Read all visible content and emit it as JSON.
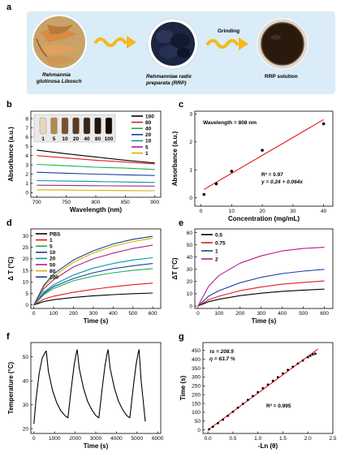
{
  "panel_a": {
    "letter": "a",
    "plant_label_lines": [
      "Rehmannia",
      "glutinosa Libosch"
    ],
    "rrp_label_lines": [
      "Rehmanniae radix",
      "preparata (RRP)"
    ],
    "grinding_label": "Grinding",
    "solution_label": "RRP solution",
    "colors": {
      "banner": "#d9ecf7",
      "arrow": "#f5b81c"
    }
  },
  "chart_data": [
    {
      "panel": "b",
      "type": "line",
      "xlabel": "Wavelength (nm)",
      "ylabel": "Absorbance (a.u.)",
      "xlim": [
        690,
        910
      ],
      "ylim": [
        -0.5,
        8.8
      ],
      "xticks": [
        700,
        750,
        800,
        850,
        900
      ],
      "yticks": [
        0,
        1,
        2,
        3,
        4,
        5,
        6,
        7,
        8
      ],
      "inset_labels": [
        "1",
        "5",
        "10",
        "20",
        "40",
        "80",
        "100"
      ],
      "series": [
        {
          "name": "100",
          "color": "#000000",
          "x": [
            700,
            750,
            800,
            850,
            900
          ],
          "y": [
            4.6,
            4.2,
            3.85,
            3.5,
            3.2
          ]
        },
        {
          "name": "80",
          "color": "#e8191c",
          "x": [
            700,
            750,
            800,
            850,
            900
          ],
          "y": [
            4.0,
            3.75,
            3.5,
            3.3,
            3.1
          ]
        },
        {
          "name": "40",
          "color": "#1db34a",
          "x": [
            700,
            750,
            800,
            850,
            900
          ],
          "y": [
            3.05,
            2.9,
            2.75,
            2.65,
            2.5
          ]
        },
        {
          "name": "20",
          "color": "#1f3ea8",
          "x": [
            700,
            750,
            800,
            850,
            900
          ],
          "y": [
            2.2,
            2.1,
            2.0,
            1.92,
            1.85
          ]
        },
        {
          "name": "10",
          "color": "#009aa8",
          "x": [
            700,
            750,
            800,
            850,
            900
          ],
          "y": [
            1.3,
            1.25,
            1.2,
            1.15,
            1.1
          ]
        },
        {
          "name": "5",
          "color": "#b0208a",
          "x": [
            700,
            750,
            800,
            850,
            900
          ],
          "y": [
            0.8,
            0.78,
            0.75,
            0.72,
            0.7
          ]
        },
        {
          "name": "1",
          "color": "#d4b000",
          "x": [
            700,
            750,
            800,
            850,
            900
          ],
          "y": [
            0.3,
            0.28,
            0.25,
            0.22,
            0.2
          ]
        }
      ]
    },
    {
      "panel": "c",
      "type": "scatter",
      "xlabel": "Concentration (mg/mL)",
      "ylabel": "Absorbance (a.u.)",
      "xlim": [
        -2,
        43
      ],
      "ylim": [
        -0.3,
        3.1
      ],
      "xticks": [
        0,
        10,
        20,
        30,
        40
      ],
      "yticks": [
        0,
        1,
        2,
        3
      ],
      "points": {
        "x": [
          1,
          5,
          10,
          20,
          40
        ],
        "y": [
          0.12,
          0.5,
          0.95,
          1.7,
          2.65
        ]
      },
      "fit": {
        "color": "#e8191c",
        "x": [
          1,
          40
        ],
        "y": [
          0.3,
          2.8
        ]
      },
      "annotations": [
        "Wavelength = 808 nm",
        "R² = 0.97",
        "y = 0.24 + 0.064x"
      ]
    },
    {
      "panel": "d",
      "type": "line",
      "xlabel": "Time (s)",
      "ylabel": "Δ T (°C)",
      "xlim": [
        -15,
        640
      ],
      "ylim": [
        -1.5,
        33
      ],
      "xticks": [
        0,
        100,
        200,
        300,
        400,
        500,
        600
      ],
      "yticks": [
        0,
        5,
        10,
        15,
        20,
        25,
        30
      ],
      "series": [
        {
          "name": "PBS",
          "color": "#000000",
          "x": [
            0,
            50,
            100,
            200,
            300,
            400,
            500,
            600
          ],
          "y": [
            0,
            1.5,
            2.3,
            3.3,
            4.0,
            4.5,
            4.9,
            5.2
          ]
        },
        {
          "name": "1",
          "color": "#e8191c",
          "x": [
            0,
            50,
            100,
            200,
            300,
            400,
            500,
            600
          ],
          "y": [
            0,
            2.5,
            3.8,
            5.5,
            6.8,
            7.9,
            8.8,
            9.5
          ]
        },
        {
          "name": "5",
          "color": "#1db34a",
          "x": [
            0,
            50,
            100,
            200,
            300,
            400,
            500,
            600
          ],
          "y": [
            0,
            4.5,
            7.2,
            10.5,
            12.5,
            14.0,
            15.0,
            15.8
          ]
        },
        {
          "name": "10",
          "color": "#1f3ea8",
          "x": [
            0,
            50,
            100,
            200,
            300,
            400,
            500,
            600
          ],
          "y": [
            0,
            5.0,
            8.0,
            11.5,
            14.0,
            15.8,
            17.0,
            18.0
          ]
        },
        {
          "name": "20",
          "color": "#009aa8",
          "x": [
            0,
            50,
            100,
            200,
            300,
            400,
            500,
            600
          ],
          "y": [
            0,
            5.5,
            8.8,
            13.0,
            16.0,
            18.0,
            19.5,
            20.5
          ]
        },
        {
          "name": "50",
          "color": "#b0208a",
          "x": [
            0,
            50,
            100,
            200,
            300,
            400,
            500,
            600
          ],
          "y": [
            0,
            7.0,
            11.0,
            16.5,
            20.0,
            22.5,
            24.5,
            26.0
          ]
        },
        {
          "name": "80",
          "color": "#d4b000",
          "x": [
            0,
            50,
            100,
            200,
            300,
            400,
            500,
            600
          ],
          "y": [
            0,
            7.8,
            12.5,
            18.5,
            22.5,
            25.5,
            27.5,
            29.0
          ]
        },
        {
          "name": "100",
          "color": "#1e3c8a",
          "x": [
            0,
            50,
            100,
            200,
            300,
            400,
            500,
            600
          ],
          "y": [
            0,
            8.5,
            13.5,
            19.5,
            23.5,
            26.5,
            28.5,
            29.8
          ]
        }
      ]
    },
    {
      "panel": "e",
      "type": "line",
      "xlabel": "Time (s)",
      "ylabel": "ΔT (°C)",
      "xlim": [
        -15,
        640
      ],
      "ylim": [
        -2,
        63
      ],
      "xticks": [
        0,
        100,
        200,
        300,
        400,
        500,
        600
      ],
      "yticks": [
        0,
        10,
        20,
        30,
        40,
        50,
        60
      ],
      "series": [
        {
          "name": "0.5",
          "color": "#000000",
          "x": [
            0,
            50,
            100,
            200,
            300,
            400,
            500,
            600
          ],
          "y": [
            0,
            3.5,
            5.5,
            8.5,
            10.5,
            12.0,
            13.0,
            13.8
          ]
        },
        {
          "name": "0.75",
          "color": "#e8191c",
          "x": [
            0,
            50,
            100,
            200,
            300,
            400,
            500,
            600
          ],
          "y": [
            0,
            5.0,
            8.0,
            12.5,
            15.5,
            17.8,
            19.3,
            20.5
          ]
        },
        {
          "name": "1",
          "color": "#1f3ea8",
          "x": [
            0,
            50,
            100,
            200,
            300,
            400,
            500,
            600
          ],
          "y": [
            0,
            8.0,
            12.5,
            19.0,
            23.5,
            26.5,
            28.5,
            30.0
          ]
        },
        {
          "name": "2",
          "color": "#b0208a",
          "x": [
            0,
            50,
            100,
            200,
            300,
            400,
            500,
            600
          ],
          "y": [
            0,
            16.0,
            25.0,
            35.0,
            41.0,
            45.0,
            47.0,
            48.0
          ]
        }
      ]
    },
    {
      "panel": "f",
      "type": "line",
      "xlabel": "Time (s)",
      "ylabel": "Temperature (°C)",
      "xlim": [
        -150,
        6150
      ],
      "ylim": [
        18,
        56
      ],
      "xticks": [
        0,
        1000,
        2000,
        3000,
        4000,
        5000,
        6000
      ],
      "yticks": [
        20,
        30,
        40,
        50
      ],
      "series": [
        {
          "name": "",
          "color": "#000000",
          "x": [
            0,
            100,
            250,
            400,
            550,
            600,
            700,
            900,
            1100,
            1300,
            1500,
            1650,
            1800,
            1950,
            2050,
            2100,
            2200,
            2400,
            2600,
            2800,
            3000,
            3150,
            3300,
            3450,
            3550,
            3600,
            3700,
            3900,
            4100,
            4300,
            4500,
            4650,
            4800,
            4950,
            5050,
            5100,
            5200,
            5400
          ],
          "y": [
            22,
            32,
            43,
            49.5,
            52,
            52.5,
            44,
            36,
            31,
            27.5,
            25.5,
            24.5,
            36,
            46.5,
            51.5,
            53,
            45,
            37,
            31.5,
            28,
            25.5,
            24.5,
            36,
            46.5,
            51.5,
            53,
            45,
            37,
            31.5,
            28,
            25.5,
            24.5,
            36,
            46.5,
            51.5,
            53,
            40,
            23
          ]
        }
      ]
    },
    {
      "panel": "g",
      "type": "scatter",
      "xlabel": "-Ln (θ)",
      "ylabel": "Time (s)",
      "xlim": [
        -0.1,
        2.5
      ],
      "ylim": [
        -20,
        495
      ],
      "xticks": [
        0.0,
        0.5,
        1.0,
        1.5,
        2.0,
        2.5
      ],
      "yticks": [
        0,
        50,
        100,
        150,
        200,
        250,
        300,
        350,
        400,
        450
      ],
      "points": {
        "x": [
          0.02,
          0.1,
          0.2,
          0.3,
          0.4,
          0.5,
          0.6,
          0.7,
          0.8,
          0.9,
          1.0,
          1.1,
          1.2,
          1.3,
          1.4,
          1.5,
          1.6,
          1.7,
          1.8,
          1.9,
          2.0,
          2.05,
          2.1,
          2.15
        ],
        "y": [
          3,
          18,
          38,
          58,
          80,
          103,
          126,
          148,
          170,
          192,
          214,
          236,
          257,
          278,
          299,
          320,
          340,
          358,
          376,
          393,
          412,
          420,
          428,
          432
        ]
      },
      "fit": {
        "color": "#e8191c",
        "x": [
          0,
          2.2
        ],
        "y": [
          0,
          458
        ]
      },
      "annotations": [
        "τs = 208.5",
        "η = 63.7 %",
        "R² = 0.995"
      ]
    }
  ]
}
